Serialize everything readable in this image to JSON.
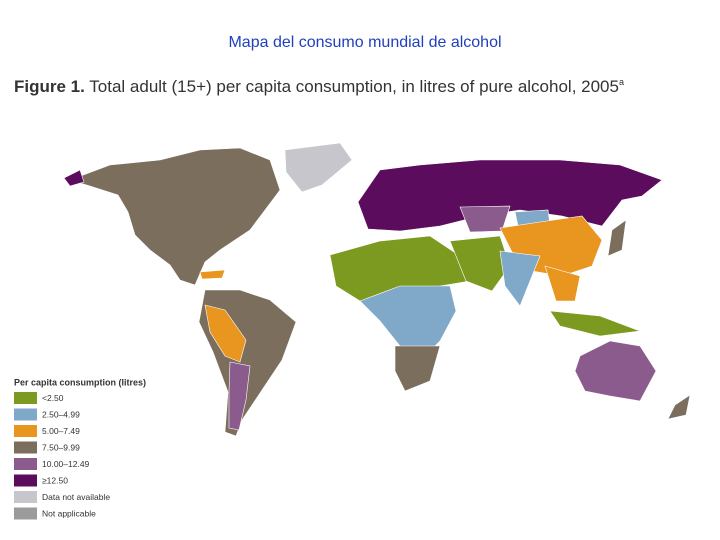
{
  "title": "Mapa del consumo mundial de alcohol",
  "figure": {
    "label": "Figure 1.",
    "caption": "Total adult (15+) per capita consumption, in litres of pure alcohol, 2005",
    "note": "a"
  },
  "legend": {
    "title": "Per capita consumption (litres)",
    "items": [
      {
        "label": "<2.50",
        "color": "#7d9a20"
      },
      {
        "label": "2.50–4.99",
        "color": "#80a8c8"
      },
      {
        "label": "5.00–7.49",
        "color": "#e8961f"
      },
      {
        "label": "7.50–9.99",
        "color": "#7b6e5d"
      },
      {
        "label": "10.00–12.49",
        "color": "#8c5b8e"
      },
      {
        "label": "≥12.50",
        "color": "#5b0c5c"
      },
      {
        "label": "Data not available",
        "color": "#c6c6cc"
      },
      {
        "label": "Not applicable",
        "color": "#9b9b9b"
      }
    ]
  }
}
